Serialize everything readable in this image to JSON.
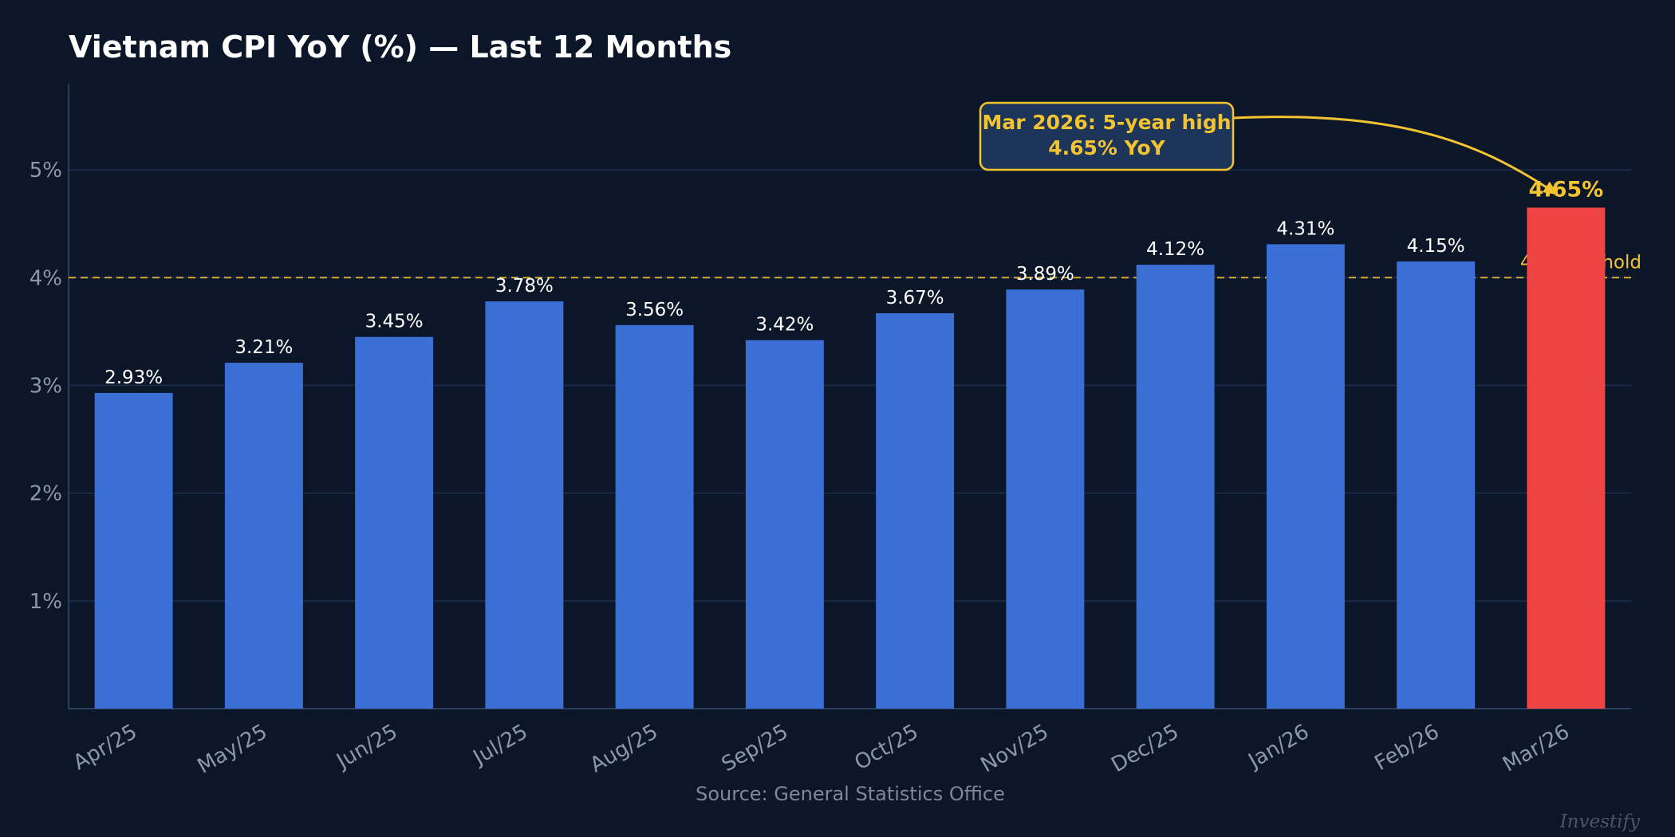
{
  "chart_data": {
    "type": "bar",
    "title": "Vietnam CPI YoY (%) — Last 12 Months",
    "categories": [
      "Apr/25",
      "May/25",
      "Jun/25",
      "Jul/25",
      "Aug/25",
      "Sep/25",
      "Oct/25",
      "Nov/25",
      "Dec/25",
      "Jan/26",
      "Feb/26",
      "Mar/26"
    ],
    "values": [
      2.93,
      3.21,
      3.45,
      3.78,
      3.56,
      3.42,
      3.67,
      3.89,
      4.12,
      4.31,
      4.15,
      4.65
    ],
    "value_labels": [
      "2.93%",
      "3.21%",
      "3.45%",
      "3.78%",
      "3.56%",
      "3.42%",
      "3.67%",
      "3.89%",
      "4.12%",
      "4.31%",
      "4.15%",
      "4.65%"
    ],
    "ylim": [
      0,
      5.8
    ],
    "yticks": [
      1,
      2,
      3,
      4,
      5
    ],
    "ytick_labels": [
      "1%",
      "2%",
      "3%",
      "4%",
      "5%"
    ],
    "xlabel": "",
    "ylabel": "",
    "grid": true,
    "legend": "none",
    "highlight_index": 11,
    "threshold": {
      "value": 4,
      "label": "4% threshold"
    },
    "annotation": {
      "lines": [
        "Mar 2026: 5-year high",
        "4.65% YoY"
      ],
      "target_index": 11
    },
    "source": "Source: General Statistics Office",
    "watermark": "Investify"
  },
  "colors": {
    "background": "#0b1628",
    "bar": "#3b6fd6",
    "bar_highlight": "#ef4444",
    "accent": "#f4c430",
    "grid": "#1d2f4d",
    "axis": "#2c3e5c",
    "annotation_box": "#1c3558"
  }
}
